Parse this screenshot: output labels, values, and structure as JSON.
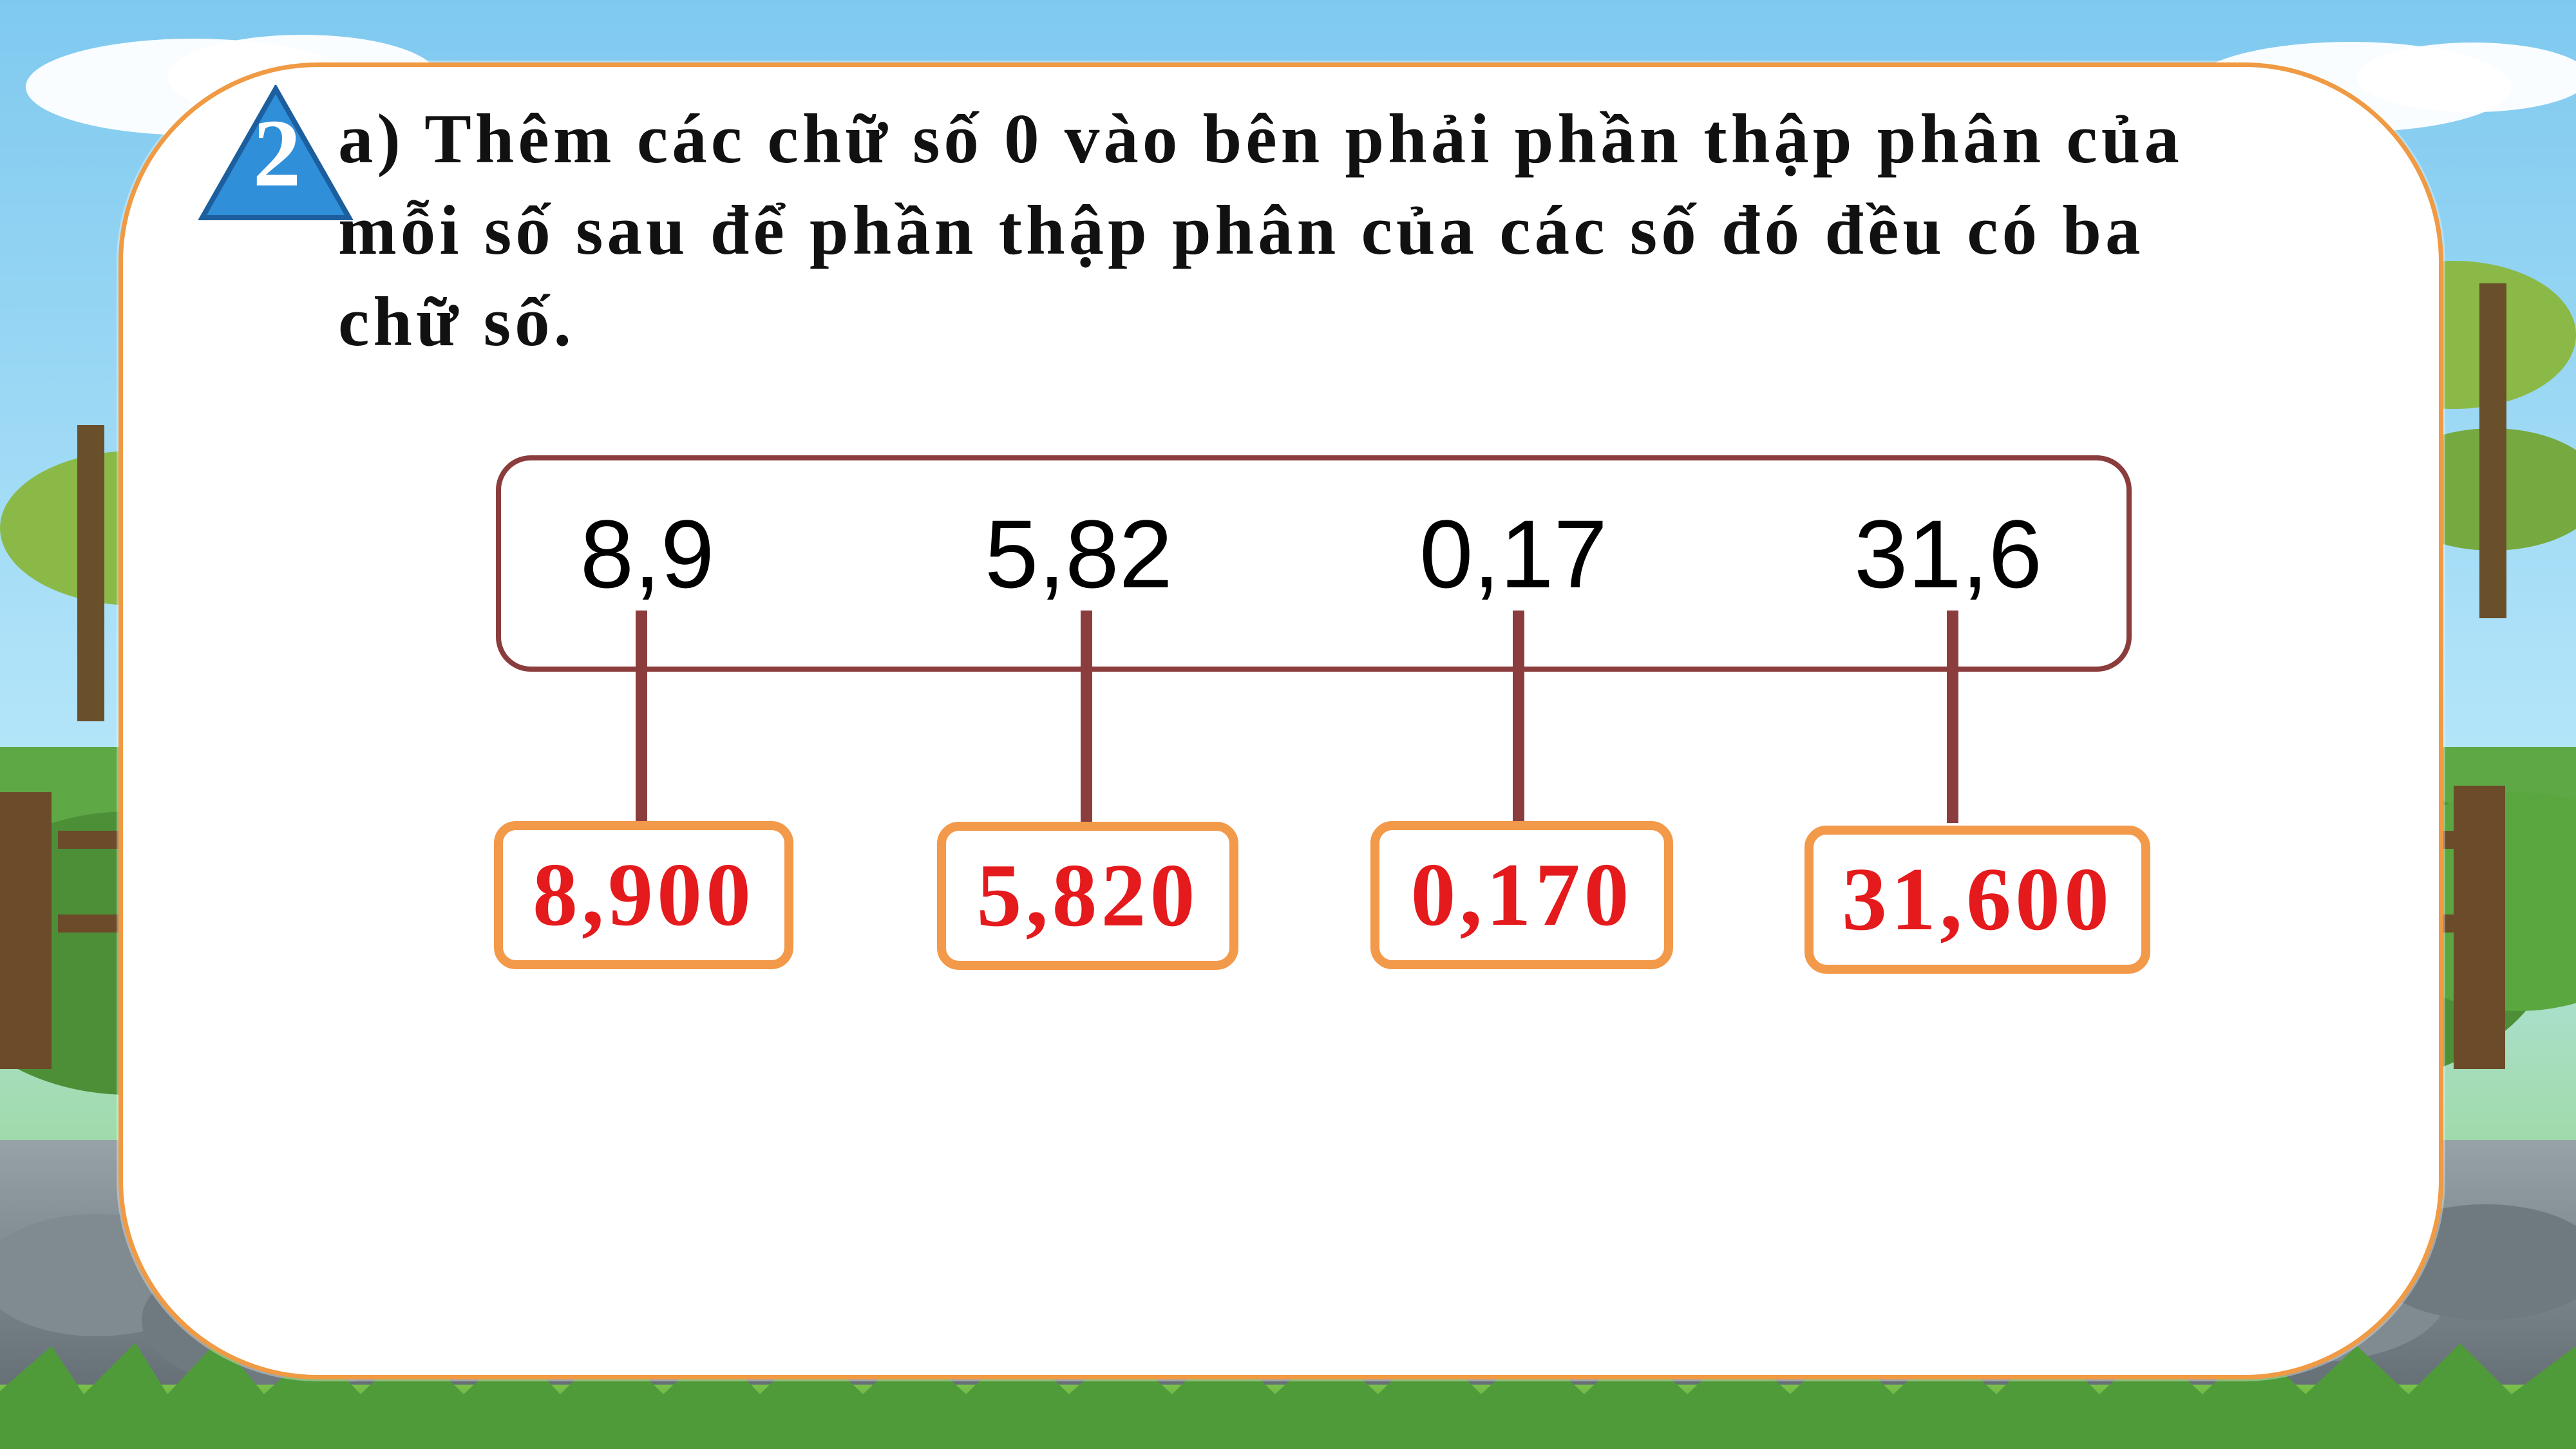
{
  "badge": {
    "number": "2"
  },
  "question": {
    "text": "a) Thêm các chữ số 0 vào bên phải phần thập phân của mỗi số sau để phần thập phân của các số đó đều có ba chữ số."
  },
  "numbers": {
    "original": [
      "8,9",
      "5,82",
      "0,17",
      "31,6"
    ],
    "answers": [
      "8,900",
      "5,820",
      "0,170",
      "31,600"
    ]
  },
  "colors": {
    "card_border": "#f09a44",
    "answer_text": "#e41a1c",
    "connector": "#8b3d3d",
    "badge": "#2f8fd8"
  }
}
